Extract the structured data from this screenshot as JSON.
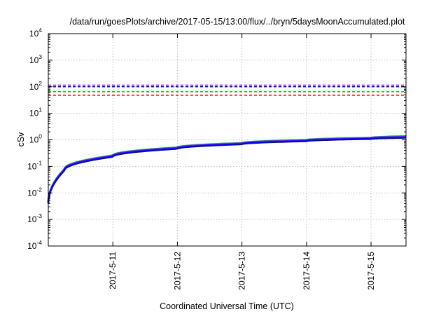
{
  "chart_data": {
    "type": "line",
    "title": "/data/run/goesPlots/archive/2017-05-15/13:00/flux/../bryn/5daysMoonAccumulated.plot",
    "xlabel": "Coordinated Universal Time (UTC)",
    "ylabel": "cSv",
    "y_scale": "log",
    "ylim_exponents": [
      -4,
      4
    ],
    "y_tick_labels": [
      {
        "base": "10",
        "exp": "4"
      },
      {
        "base": "10",
        "exp": "3"
      },
      {
        "base": "10",
        "exp": "2"
      },
      {
        "base": "10",
        "exp": "1"
      },
      {
        "base": "10",
        "exp": "0"
      },
      {
        "base": "10",
        "exp": "-1"
      },
      {
        "base": "10",
        "exp": "-2"
      },
      {
        "base": "10",
        "exp": "-3"
      },
      {
        "base": "10",
        "exp": "-4"
      }
    ],
    "xlim": [
      "2017-05-10 00:00",
      "2017-05-15 13:00"
    ],
    "x_ticks": [
      "2017-5-11",
      "2017-5-12",
      "2017-5-13",
      "2017-5-14",
      "2017-5-15"
    ],
    "x_tick_dates": [
      "2017-05-11",
      "2017-05-12",
      "2017-05-13",
      "2017-05-14",
      "2017-05-15"
    ],
    "grid": true,
    "legend": "none",
    "reference_lines": [
      {
        "y": 115,
        "color": "#9400d3"
      },
      {
        "y": 100,
        "color": "#0000ff"
      },
      {
        "y": 65,
        "color": "#00c000"
      },
      {
        "y": 48,
        "color": "#e00000"
      }
    ],
    "series": [
      {
        "color": "#00c000",
        "x": [
          "2017-05-10 00:00",
          "2017-05-10 06:00",
          "2017-05-11 00:00",
          "2017-05-12 00:00",
          "2017-05-13 00:00",
          "2017-05-14 00:00",
          "2017-05-15 00:00",
          "2017-05-15 13:00"
        ],
        "y": [
          0.0045,
          0.08,
          0.26,
          0.52,
          0.76,
          1.0,
          1.2,
          1.38
        ]
      },
      {
        "color": "#9400d3",
        "x": [
          "2017-05-10 00:00",
          "2017-05-10 06:00",
          "2017-05-11 00:00",
          "2017-05-12 00:00",
          "2017-05-13 00:00",
          "2017-05-14 00:00",
          "2017-05-15 00:00",
          "2017-05-15 13:00"
        ],
        "y": [
          0.0042,
          0.075,
          0.245,
          0.49,
          0.72,
          0.94,
          1.14,
          1.28
        ]
      },
      {
        "color": "#0000ff",
        "x": [
          "2017-05-10 00:00",
          "2017-05-10 06:00",
          "2017-05-11 00:00",
          "2017-05-12 00:00",
          "2017-05-13 00:00",
          "2017-05-14 00:00",
          "2017-05-15 00:00",
          "2017-05-15 13:00"
        ],
        "y": [
          0.004,
          0.07,
          0.23,
          0.46,
          0.68,
          0.89,
          1.08,
          1.2
        ]
      }
    ]
  }
}
